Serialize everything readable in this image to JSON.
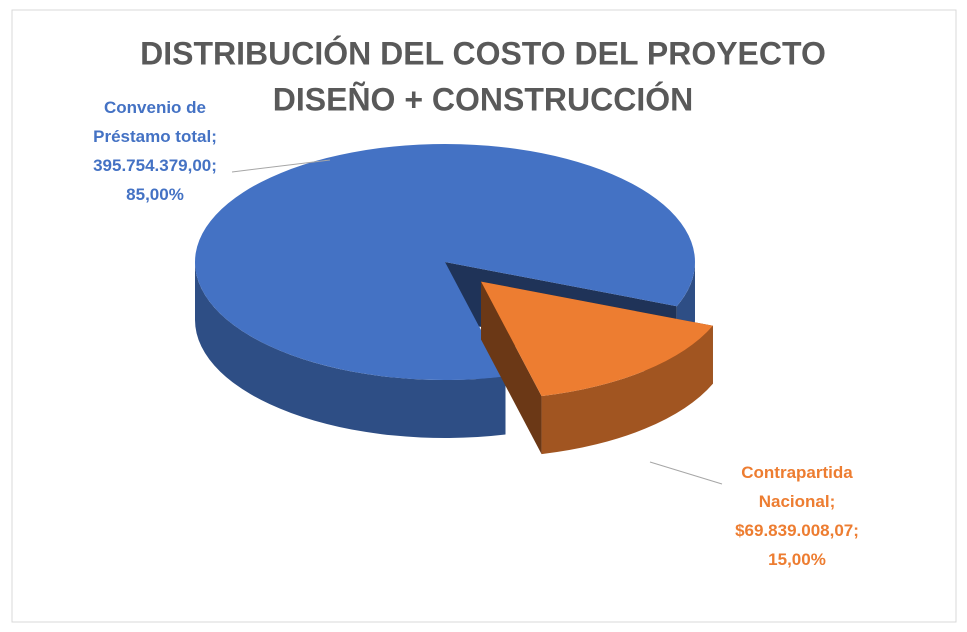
{
  "chart_data": {
    "type": "pie3d",
    "title": [
      "DISTRIBUCIÓN DEL COSTO DEL PROYECTO",
      "DISEÑO + CONSTRUCCIÓN"
    ],
    "categories": [
      "Convenio de Préstamo total",
      "Contrapartida Nacional"
    ],
    "values": [
      395754379.0,
      69839008.07
    ],
    "value_labels": [
      "395.754.379,00",
      "$69.839.008,07"
    ],
    "percents": [
      85,
      15
    ],
    "percent_labels": [
      "85,00%",
      "15,00%"
    ],
    "separator": ";",
    "colors": [
      "#4472c4",
      "#ed7d31"
    ],
    "exploded": [
      false,
      true
    ]
  }
}
